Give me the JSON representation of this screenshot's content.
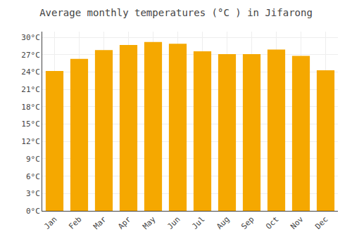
{
  "chart_data": {
    "type": "bar",
    "title": "Average monthly temperatures (°C ) in Jifarong",
    "categories": [
      "Jan",
      "Feb",
      "Mar",
      "Apr",
      "May",
      "Jun",
      "Jul",
      "Aug",
      "Sep",
      "Oct",
      "Nov",
      "Dec"
    ],
    "values": [
      24.2,
      26.3,
      27.8,
      28.7,
      29.2,
      28.9,
      27.6,
      27.1,
      27.1,
      27.9,
      26.8,
      24.3
    ],
    "color": "#F5A800",
    "ylim": [
      0,
      31
    ],
    "yticks": [
      {
        "value": 0,
        "label": "0°C"
      },
      {
        "value": 3,
        "label": "3°C"
      },
      {
        "value": 6,
        "label": "6°C"
      },
      {
        "value": 9,
        "label": "9°C"
      },
      {
        "value": 12,
        "label": "12°C"
      },
      {
        "value": 15,
        "label": "15°C"
      },
      {
        "value": 18,
        "label": "18°C"
      },
      {
        "value": 21,
        "label": "21°C"
      },
      {
        "value": 24,
        "label": "24°C"
      },
      {
        "value": 27,
        "label": "27°C"
      },
      {
        "value": 30,
        "label": "30°C"
      }
    ],
    "grid": true
  }
}
